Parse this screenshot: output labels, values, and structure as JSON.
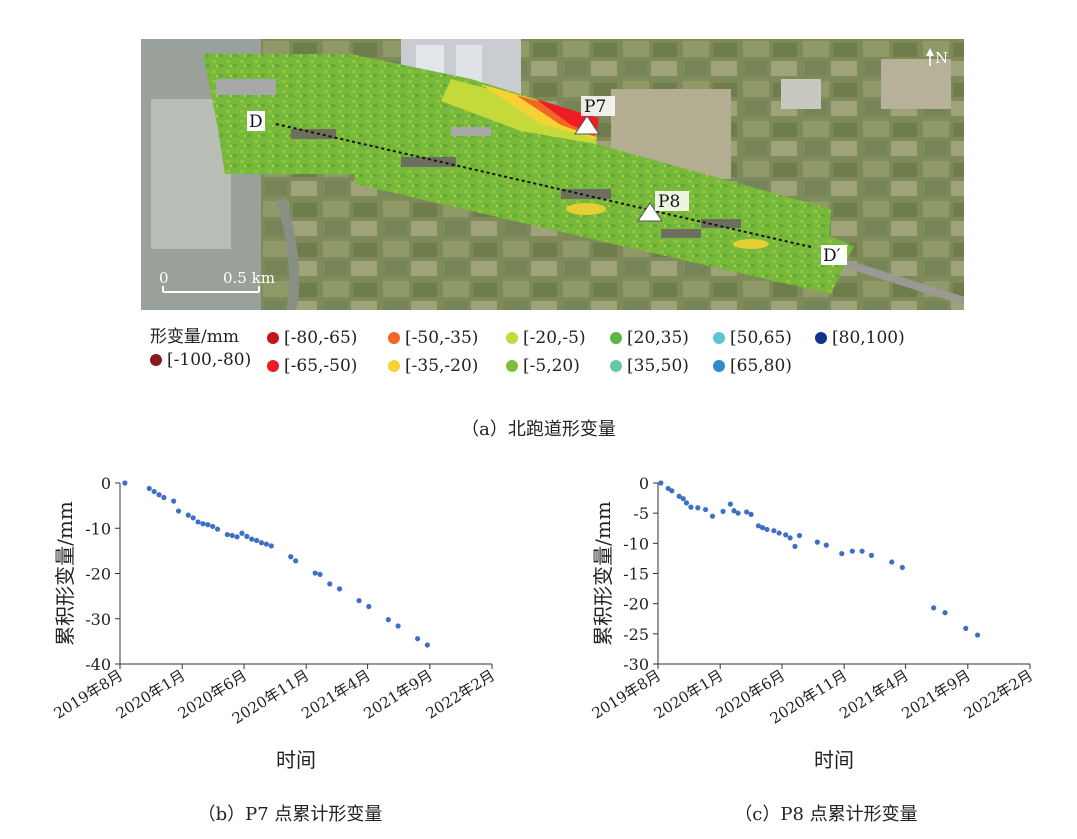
{
  "map": {
    "labels": {
      "north": "N",
      "p7": "P7",
      "p8": "P8",
      "d_start": "D",
      "d_end": "D′",
      "scale_zero": "0",
      "scale_len": "0.5 km"
    }
  },
  "legend": {
    "title": "形变量/mm",
    "items": [
      {
        "label": "[-100,-80)",
        "color": "#8b1a1a"
      },
      {
        "label": "[-80,-65)",
        "color": "#c4161c"
      },
      {
        "label": "[-65,-50)",
        "color": "#ee1c25"
      },
      {
        "label": "[-50,-35)",
        "color": "#f26522"
      },
      {
        "label": "[-35,-20)",
        "color": "#f7d234"
      },
      {
        "label": "[-20,-5)",
        "color": "#c5d93b"
      },
      {
        "label": "[-5,20)",
        "color": "#7bbf3d"
      },
      {
        "label": "[20,35)",
        "color": "#5cb446"
      },
      {
        "label": "[35,50)",
        "color": "#66c7a6"
      },
      {
        "label": "[50,65)",
        "color": "#5bc6d0"
      },
      {
        "label": "[65,80)",
        "color": "#2e8bcf"
      },
      {
        "label": "[80,100)",
        "color": "#13328f"
      }
    ]
  },
  "captions": {
    "a": "（a）北跑道形变量",
    "b": "（b）P7 点累计形变量",
    "c": "（c）P8 点累计形变量"
  },
  "chart_data": [
    {
      "type": "scatter",
      "name": "P7",
      "xlabel": "时间",
      "ylabel": "累积形变量/mm",
      "ylim": [
        -40,
        0
      ],
      "yticks": [
        0,
        -10,
        -20,
        -30,
        -40
      ],
      "xlim": [
        "2019-08-01",
        "2022-02-01"
      ],
      "xticks": [
        {
          "date": "2019-08-01",
          "label": "2019年8月"
        },
        {
          "date": "2020-01-01",
          "label": "2020年1月"
        },
        {
          "date": "2020-06-01",
          "label": "2020年6月"
        },
        {
          "date": "2020-11-01",
          "label": "2020年11月"
        },
        {
          "date": "2021-04-01",
          "label": "2021年4月"
        },
        {
          "date": "2021-09-01",
          "label": "2021年9月"
        },
        {
          "date": "2022-02-01",
          "label": "2022年2月"
        }
      ],
      "color": "#3f6fc4",
      "points": [
        {
          "x": "2019-08-13",
          "y": 0.0
        },
        {
          "x": "2019-10-12",
          "y": -1.2
        },
        {
          "x": "2019-10-24",
          "y": -1.9
        },
        {
          "x": "2019-11-05",
          "y": -2.6
        },
        {
          "x": "2019-11-17",
          "y": -3.2
        },
        {
          "x": "2019-12-11",
          "y": -4.0
        },
        {
          "x": "2019-12-23",
          "y": -6.2
        },
        {
          "x": "2020-01-16",
          "y": -7.1
        },
        {
          "x": "2020-01-28",
          "y": -7.7
        },
        {
          "x": "2020-02-09",
          "y": -8.6
        },
        {
          "x": "2020-02-21",
          "y": -9.0
        },
        {
          "x": "2020-03-04",
          "y": -9.2
        },
        {
          "x": "2020-03-16",
          "y": -9.6
        },
        {
          "x": "2020-03-28",
          "y": -10.2
        },
        {
          "x": "2020-04-21",
          "y": -11.4
        },
        {
          "x": "2020-05-03",
          "y": -11.6
        },
        {
          "x": "2020-05-15",
          "y": -11.9
        },
        {
          "x": "2020-05-27",
          "y": -11.1
        },
        {
          "x": "2020-06-08",
          "y": -11.8
        },
        {
          "x": "2020-06-20",
          "y": -12.4
        },
        {
          "x": "2020-07-02",
          "y": -12.7
        },
        {
          "x": "2020-07-14",
          "y": -13.2
        },
        {
          "x": "2020-07-26",
          "y": -13.5
        },
        {
          "x": "2020-08-07",
          "y": -13.9
        },
        {
          "x": "2020-09-24",
          "y": -16.3
        },
        {
          "x": "2020-10-06",
          "y": -17.2
        },
        {
          "x": "2020-11-23",
          "y": -19.9
        },
        {
          "x": "2020-12-05",
          "y": -20.2
        },
        {
          "x": "2020-12-29",
          "y": -22.3
        },
        {
          "x": "2021-01-22",
          "y": -23.4
        },
        {
          "x": "2021-03-11",
          "y": -26.0
        },
        {
          "x": "2021-04-04",
          "y": -27.3
        },
        {
          "x": "2021-05-22",
          "y": -30.2
        },
        {
          "x": "2021-06-15",
          "y": -31.6
        },
        {
          "x": "2021-08-02",
          "y": -34.4
        },
        {
          "x": "2021-08-26",
          "y": -35.8
        }
      ]
    },
    {
      "type": "scatter",
      "name": "P8",
      "xlabel": "时间",
      "ylabel": "累积形变量/mm",
      "ylim": [
        -30,
        0
      ],
      "yticks": [
        0,
        -5,
        -10,
        -15,
        -20,
        -25,
        -30
      ],
      "xlim": [
        "2019-08-01",
        "2022-02-01"
      ],
      "xticks": [
        {
          "date": "2019-08-01",
          "label": "2019年8月"
        },
        {
          "date": "2020-01-01",
          "label": "2020年1月"
        },
        {
          "date": "2020-06-01",
          "label": "2020年6月"
        },
        {
          "date": "2020-11-01",
          "label": "2020年11月"
        },
        {
          "date": "2021-04-01",
          "label": "2021年4月"
        },
        {
          "date": "2021-09-01",
          "label": "2021年9月"
        },
        {
          "date": "2022-02-01",
          "label": "2022年2月"
        }
      ],
      "color": "#3f6fc4",
      "points": [
        {
          "x": "2019-08-08",
          "y": 0.0
        },
        {
          "x": "2019-08-26",
          "y": -0.9
        },
        {
          "x": "2019-09-04",
          "y": -1.3
        },
        {
          "x": "2019-09-22",
          "y": -2.2
        },
        {
          "x": "2019-10-02",
          "y": -2.6
        },
        {
          "x": "2019-10-10",
          "y": -3.3
        },
        {
          "x": "2019-10-21",
          "y": -4.0
        },
        {
          "x": "2019-11-07",
          "y": -4.1
        },
        {
          "x": "2019-11-26",
          "y": -4.4
        },
        {
          "x": "2019-12-13",
          "y": -5.5
        },
        {
          "x": "2020-01-08",
          "y": -4.7
        },
        {
          "x": "2020-01-26",
          "y": -3.5
        },
        {
          "x": "2020-02-04",
          "y": -4.6
        },
        {
          "x": "2020-02-14",
          "y": -5.0
        },
        {
          "x": "2020-03-06",
          "y": -4.8
        },
        {
          "x": "2020-03-17",
          "y": -5.2
        },
        {
          "x": "2020-04-04",
          "y": -7.1
        },
        {
          "x": "2020-04-14",
          "y": -7.4
        },
        {
          "x": "2020-04-25",
          "y": -7.7
        },
        {
          "x": "2020-05-12",
          "y": -7.9
        },
        {
          "x": "2020-05-25",
          "y": -8.3
        },
        {
          "x": "2020-06-10",
          "y": -8.6
        },
        {
          "x": "2020-06-21",
          "y": -9.1
        },
        {
          "x": "2020-07-03",
          "y": -10.5
        },
        {
          "x": "2020-07-14",
          "y": -8.7
        },
        {
          "x": "2020-08-27",
          "y": -9.8
        },
        {
          "x": "2020-09-18",
          "y": -10.3
        },
        {
          "x": "2020-10-26",
          "y": -11.7
        },
        {
          "x": "2020-11-21",
          "y": -11.3
        },
        {
          "x": "2020-12-15",
          "y": -11.3
        },
        {
          "x": "2021-01-07",
          "y": -12.0
        },
        {
          "x": "2021-02-26",
          "y": -13.1
        },
        {
          "x": "2021-03-24",
          "y": -14.0
        },
        {
          "x": "2021-06-09",
          "y": -20.7
        },
        {
          "x": "2021-07-07",
          "y": -21.5
        },
        {
          "x": "2021-08-27",
          "y": -24.1
        },
        {
          "x": "2021-09-25",
          "y": -25.2
        }
      ]
    }
  ]
}
